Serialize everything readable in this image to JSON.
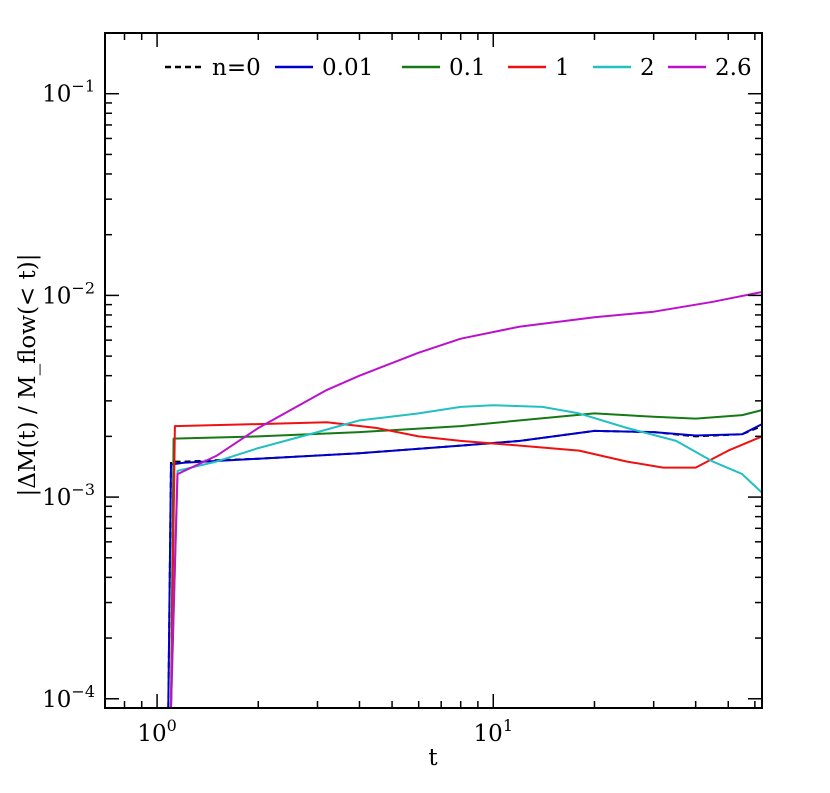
{
  "chart_data": {
    "type": "line",
    "xlabel": "t",
    "ylabel": "|ΔM(t) / M_flow(< t)|",
    "xscale": "log",
    "yscale": "log",
    "xlim": [
      0.7,
      63
    ],
    "ylim": [
      9e-05,
      0.2
    ],
    "grid": false,
    "legend_position": "top",
    "x_ticks": [
      {
        "value": 1,
        "label": "10",
        "exp": "0"
      },
      {
        "value": 10,
        "label": "10",
        "exp": "1"
      }
    ],
    "y_ticks": [
      {
        "value": 0.0001,
        "label": "10",
        "exp": "−4"
      },
      {
        "value": 0.001,
        "label": "10",
        "exp": "−3"
      },
      {
        "value": 0.01,
        "label": "10",
        "exp": "−2"
      },
      {
        "value": 0.1,
        "label": "10",
        "exp": "−1"
      }
    ],
    "series": [
      {
        "name": "n=0",
        "color": "#000000",
        "dash": true,
        "x": [
          1.08,
          1.1,
          1.2,
          2,
          4,
          8,
          12,
          20,
          30,
          40,
          55,
          63
        ],
        "y": [
          9e-05,
          0.0015,
          0.0015,
          0.00155,
          0.00165,
          0.0018,
          0.0019,
          0.00213,
          0.0021,
          0.002,
          0.00205,
          0.00225
        ]
      },
      {
        "name": "0.01",
        "color": "#0000cc",
        "dash": false,
        "x": [
          1.08,
          1.1,
          1.2,
          2,
          4,
          8,
          12,
          20,
          30,
          40,
          55,
          63
        ],
        "y": [
          9e-05,
          0.00145,
          0.00148,
          0.00155,
          0.00165,
          0.0018,
          0.0019,
          0.00213,
          0.0021,
          0.00202,
          0.00205,
          0.0023
        ]
      },
      {
        "name": "0.1",
        "color": "#157a15",
        "dash": false,
        "x": [
          1.1,
          1.12,
          2,
          4,
          8,
          12,
          20,
          30,
          40,
          55,
          63
        ],
        "y": [
          9e-05,
          0.00195,
          0.002,
          0.0021,
          0.00225,
          0.0024,
          0.0026,
          0.0025,
          0.00245,
          0.00255,
          0.0027
        ]
      },
      {
        "name": "1",
        "color": "#ee1111",
        "dash": false,
        "x": [
          1.1,
          1.13,
          2,
          3.2,
          4.5,
          6,
          8,
          12,
          18,
          25,
          32,
          40,
          50,
          63
        ],
        "y": [
          9e-05,
          0.00225,
          0.0023,
          0.00235,
          0.0022,
          0.002,
          0.0019,
          0.0018,
          0.0017,
          0.0015,
          0.0014,
          0.0014,
          0.0017,
          0.002
        ]
      },
      {
        "name": "2",
        "color": "#22c0c0",
        "dash": false,
        "x": [
          1.1,
          1.15,
          1.5,
          2,
          3,
          4,
          6,
          8,
          10,
          14,
          18,
          25,
          35,
          45,
          55,
          63
        ],
        "y": [
          9e-05,
          0.00135,
          0.0015,
          0.00175,
          0.0021,
          0.0024,
          0.0026,
          0.0028,
          0.00285,
          0.0028,
          0.0026,
          0.0022,
          0.0019,
          0.0015,
          0.0013,
          0.00105
        ]
      },
      {
        "name": "2.6",
        "color": "#bb11cc",
        "dash": false,
        "x": [
          1.1,
          1.15,
          1.5,
          2,
          3.2,
          4,
          6,
          8,
          12,
          20,
          30,
          45,
          63
        ],
        "y": [
          9e-05,
          0.0013,
          0.0016,
          0.0022,
          0.0034,
          0.004,
          0.0052,
          0.0061,
          0.007,
          0.0078,
          0.0083,
          0.0093,
          0.0104
        ]
      }
    ]
  }
}
